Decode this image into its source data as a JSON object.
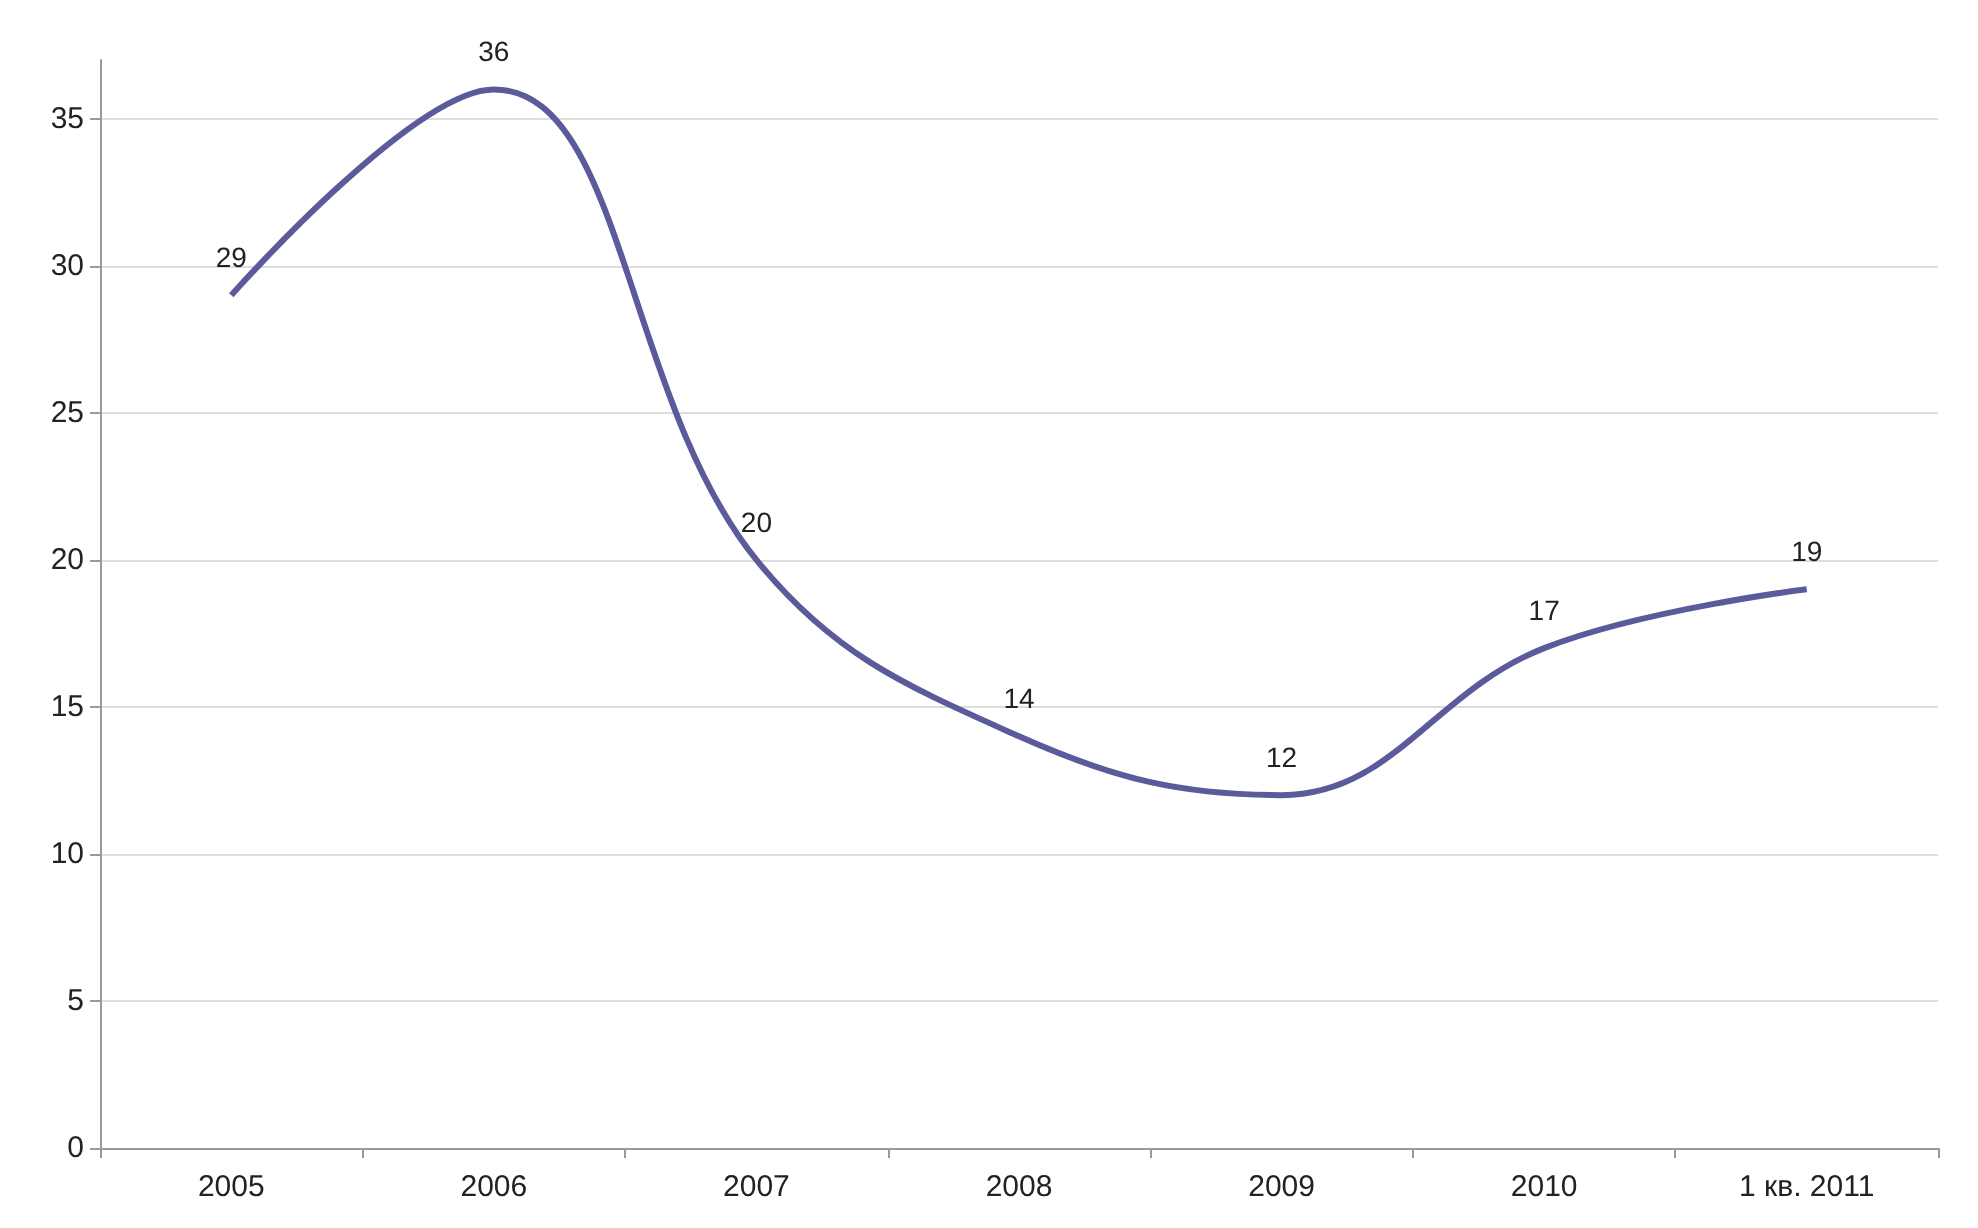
{
  "chart_data": {
    "type": "line",
    "categories": [
      "2005",
      "2006",
      "2007",
      "2008",
      "2009",
      "2010",
      "1 кв. 2011"
    ],
    "series": [
      {
        "color": "#5b5b9b",
        "values": [
          29,
          36,
          20,
          14,
          12,
          17,
          19
        ]
      }
    ],
    "ylim": [
      0,
      37
    ],
    "yticks": [
      0,
      5,
      10,
      15,
      20,
      25,
      30,
      35
    ],
    "grid": "y",
    "data_labels": true,
    "marker": "none"
  }
}
